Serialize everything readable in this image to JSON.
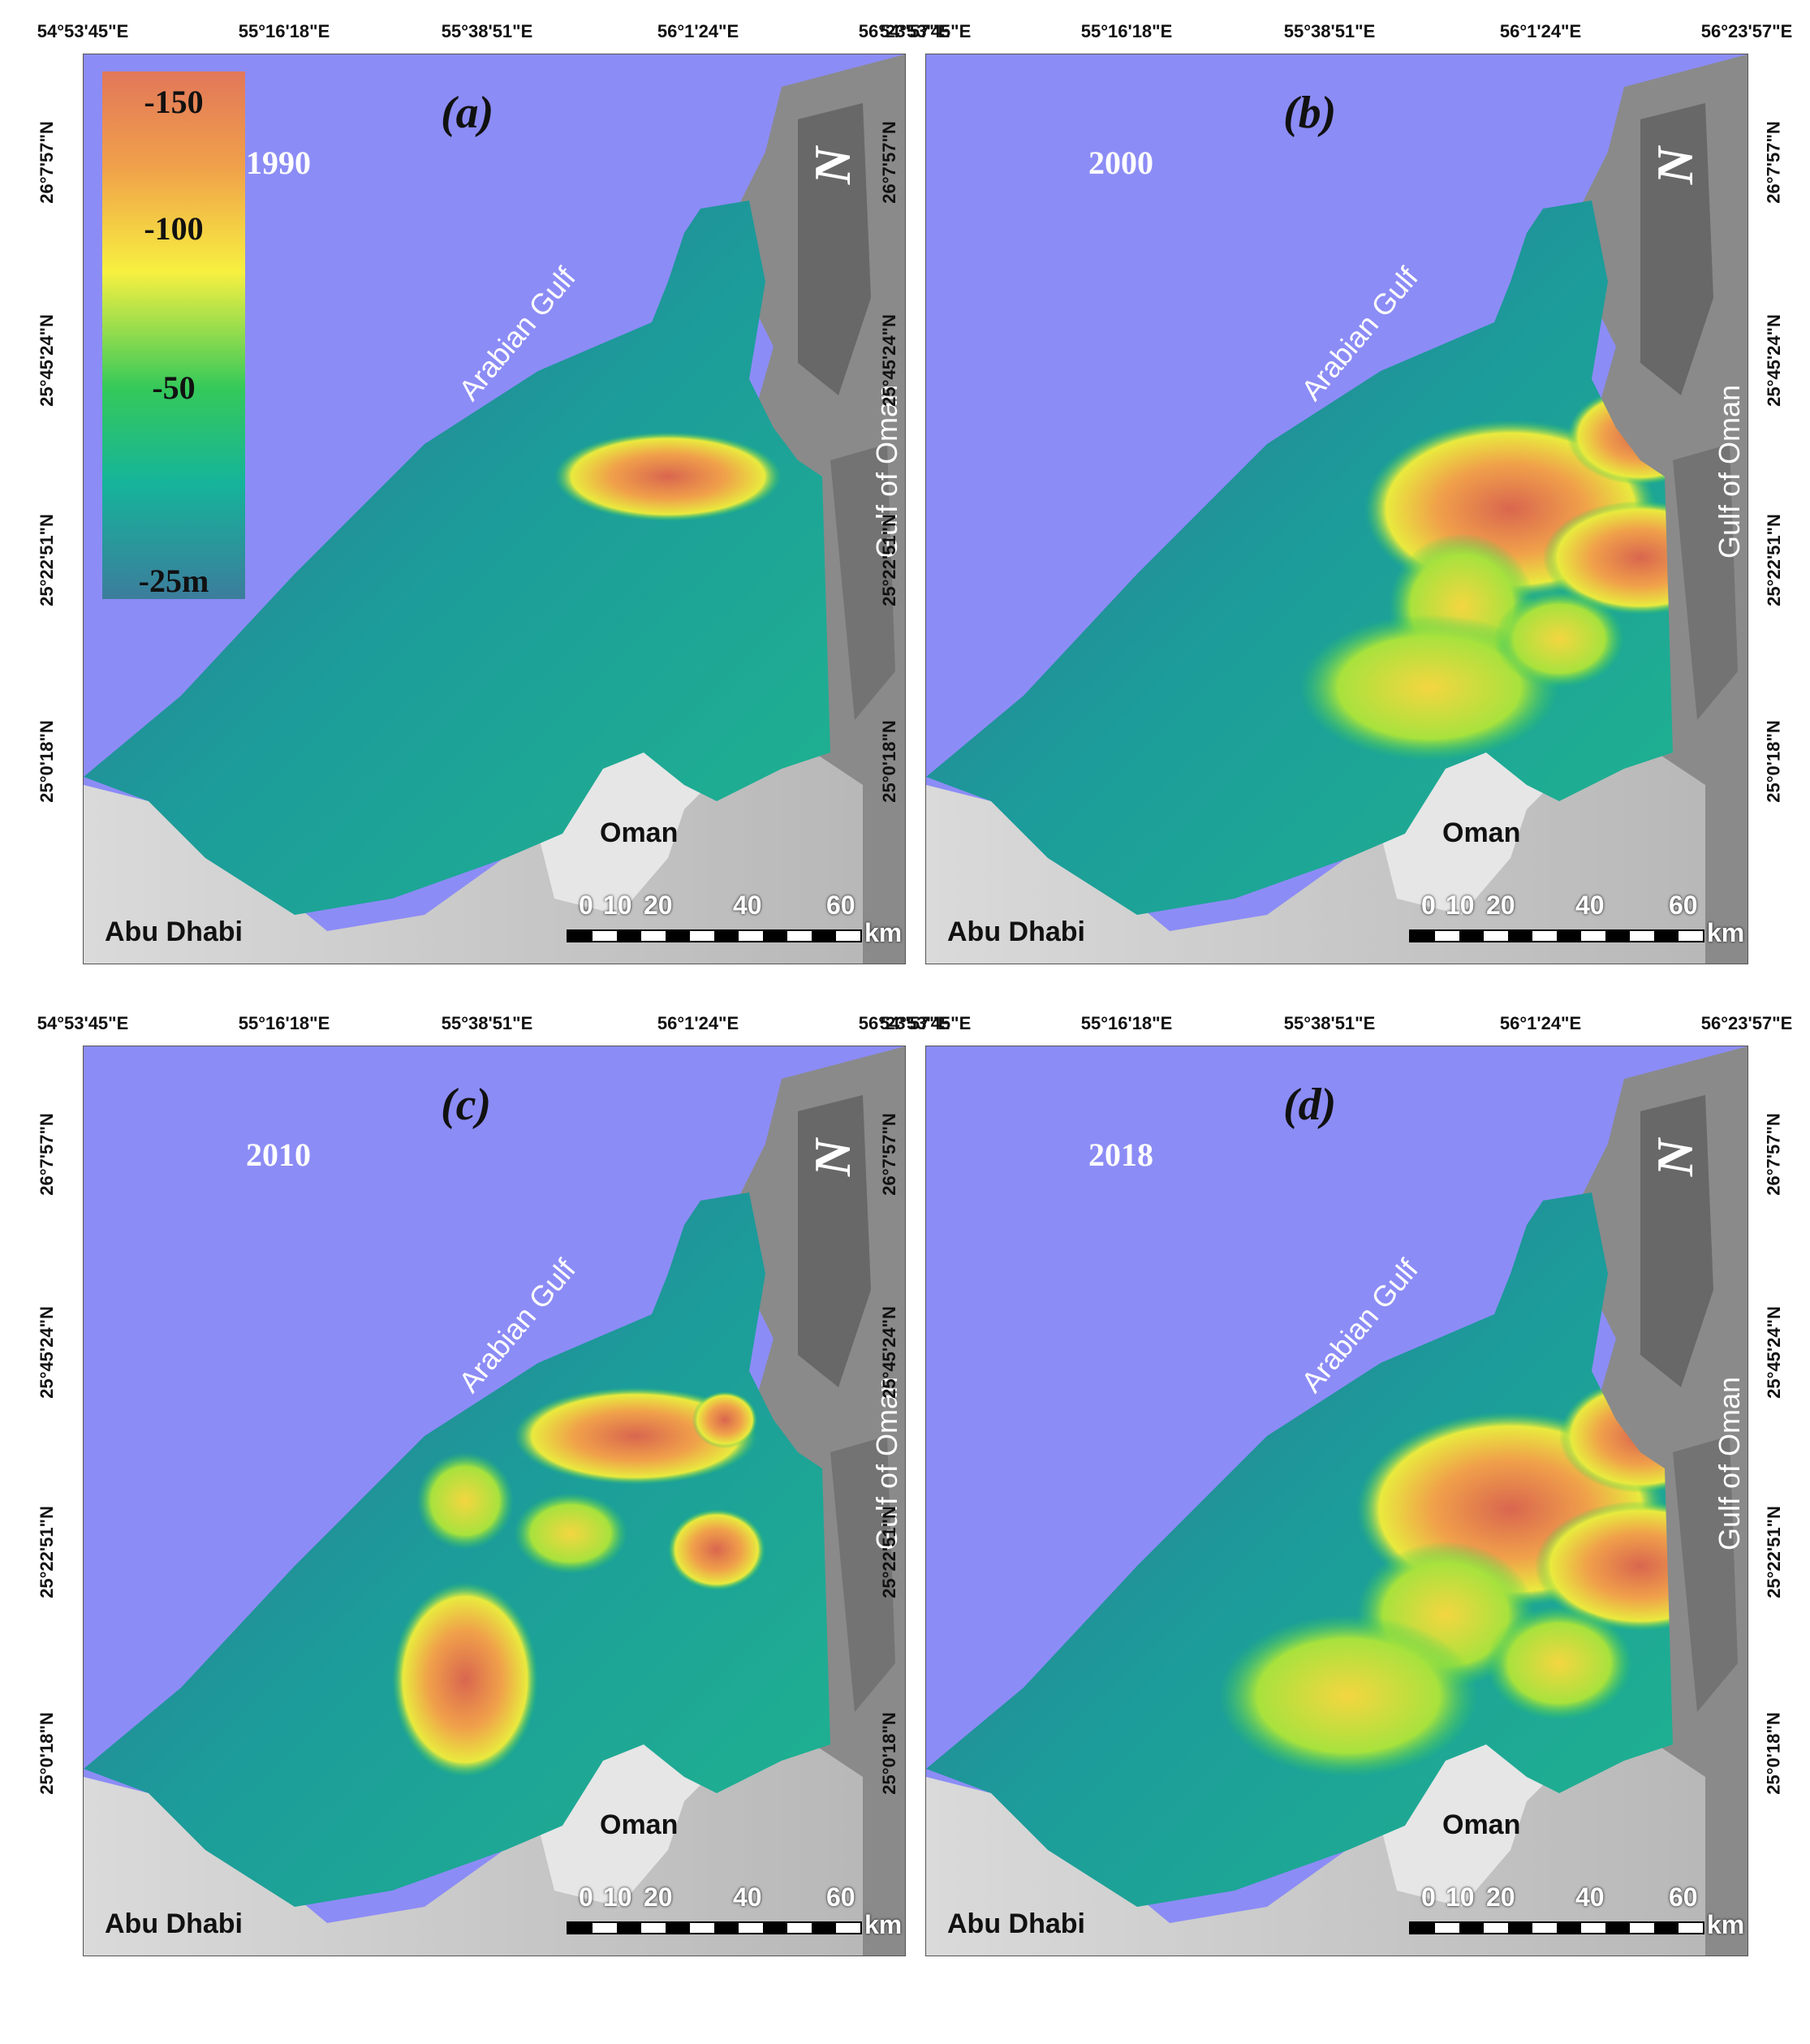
{
  "legend": {
    "labels": [
      "-150",
      "-100",
      "-50",
      "-25m"
    ],
    "colors": [
      "#e2775a",
      "#f0a04a",
      "#f7f040",
      "#35c95a",
      "#15b49a",
      "#3c7d9c"
    ]
  },
  "axes": {
    "longitudes": [
      "54°53'45\"E",
      "55°16'18\"E",
      "55°38'51\"E",
      "56°1'24\"E",
      "56°23'57\"E"
    ],
    "latitudes": [
      "26°7'57\"N",
      "25°45'24\"N",
      "25°22'51\"N",
      "25°0'18\"N"
    ]
  },
  "places": {
    "arabian_gulf": "Arabian Gulf",
    "gulf_of_oman": "Gulf of Oman",
    "oman": "Oman",
    "abu_dhabi": "Abu Dhabi"
  },
  "scale_bar": {
    "ticks": [
      "0",
      "10",
      "20",
      "40",
      "60"
    ],
    "unit": "km"
  },
  "north_arrow": "N",
  "panels": [
    {
      "label": "(a)",
      "year": "1990"
    },
    {
      "label": "(b)",
      "year": "2000"
    },
    {
      "label": "(c)",
      "year": "2010"
    },
    {
      "label": "(d)",
      "year": "2018"
    }
  ],
  "colors": {
    "sea": "#8c8cf6",
    "land_gray": "#d2d2d2",
    "deep": "#e2775a",
    "shallow": "#3c7d9c"
  }
}
